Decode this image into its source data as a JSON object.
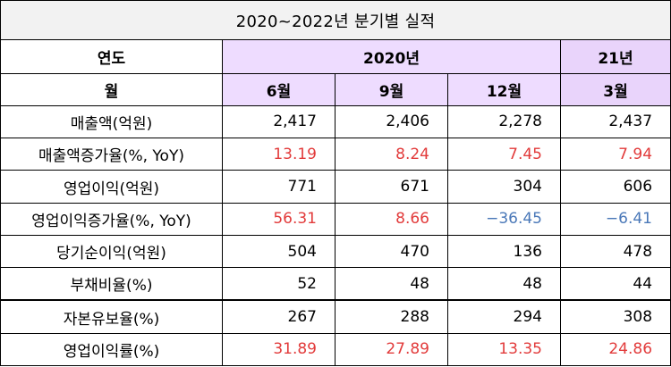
{
  "title": "2020~2022년 분기별 실적",
  "header": {
    "col_label_1": "연도",
    "year_2020": "2020년",
    "year_21": "21년",
    "col_label_2": "월",
    "months": [
      "6월",
      "9월",
      "12월",
      "3월"
    ]
  },
  "rows": [
    {
      "label": "매출액(억원)",
      "values": [
        "2,417",
        "2,406",
        "2,278",
        "2,437"
      ],
      "colors": [
        "black",
        "black",
        "black",
        "black"
      ]
    },
    {
      "label": "매출액증가율(%, YoY)",
      "values": [
        "13.19",
        "8.24",
        "7.45",
        "7.94"
      ],
      "colors": [
        "red",
        "red",
        "red",
        "red"
      ]
    },
    {
      "label": "영업이익(억원)",
      "values": [
        "771",
        "671",
        "304",
        "606"
      ],
      "colors": [
        "black",
        "black",
        "black",
        "black"
      ]
    },
    {
      "label": "영업이익증가율(%, YoY)",
      "values": [
        "56.31",
        "8.66",
        "−36.45",
        "−6.41"
      ],
      "colors": [
        "red",
        "red",
        "blue",
        "blue"
      ]
    },
    {
      "label": "당기순이익(억원)",
      "values": [
        "504",
        "470",
        "136",
        "478"
      ],
      "colors": [
        "black",
        "black",
        "black",
        "black"
      ]
    },
    {
      "label": "부채비율(%)",
      "values": [
        "52",
        "48",
        "48",
        "44"
      ],
      "colors": [
        "black",
        "black",
        "black",
        "black"
      ]
    },
    {
      "label": "자본유보율(%)",
      "values": [
        "267",
        "288",
        "294",
        "308"
      ],
      "colors": [
        "black",
        "black",
        "black",
        "black"
      ]
    },
    {
      "label": "영업이익률(%)",
      "values": [
        "31.89",
        "27.89",
        "13.35",
        "24.86"
      ],
      "colors": [
        "red",
        "red",
        "red",
        "red"
      ]
    }
  ],
  "colors": {
    "positive": "#e23b3b",
    "negative": "#4a78b8",
    "title_bg": "#f2f2f2",
    "header_purple": "#eedcff"
  }
}
